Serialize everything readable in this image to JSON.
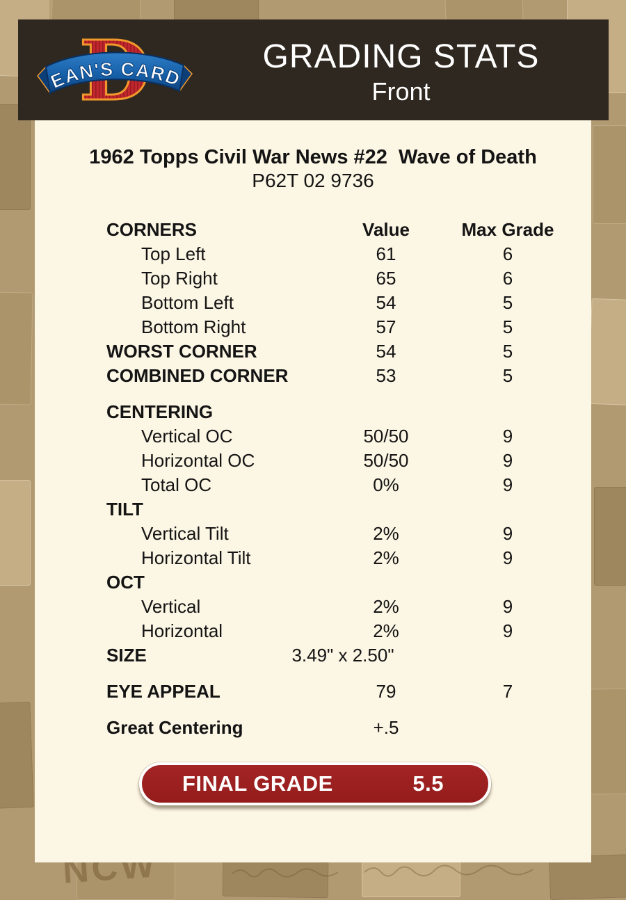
{
  "header": {
    "logo_monogram": "D",
    "logo_text": "DEAN'S CARDS",
    "title": "GRADING STATS",
    "view": "Front"
  },
  "card": {
    "title": "1962 Topps Civil War News #22  Wave of Death",
    "id": "P62T 02 9736"
  },
  "table": {
    "rows": [
      {
        "label": "CORNERS",
        "value": "Value",
        "max": "Max Grade",
        "type": "header"
      },
      {
        "label": "Top Left",
        "value": "61",
        "max": "6",
        "type": "item"
      },
      {
        "label": "Top Right",
        "value": "65",
        "max": "6",
        "type": "item"
      },
      {
        "label": "Bottom Left",
        "value": "54",
        "max": "5",
        "type": "item"
      },
      {
        "label": "Bottom Right",
        "value": "57",
        "max": "5",
        "type": "item"
      },
      {
        "label": "WORST CORNER",
        "value": "54",
        "max": "5",
        "type": "section"
      },
      {
        "label": "COMBINED CORNER",
        "value": "53",
        "max": "5",
        "type": "section"
      },
      {
        "label": "CENTERING",
        "value": "",
        "max": "",
        "type": "section",
        "gap": true
      },
      {
        "label": "Vertical OC",
        "value": "50/50",
        "max": "9",
        "type": "item"
      },
      {
        "label": "Horizontal OC",
        "value": "50/50",
        "max": "9",
        "type": "item"
      },
      {
        "label": "Total OC",
        "value": "0%",
        "max": "9",
        "type": "item"
      },
      {
        "label": "TILT",
        "value": "",
        "max": "",
        "type": "section"
      },
      {
        "label": "Vertical Tilt",
        "value": "2%",
        "max": "9",
        "type": "item"
      },
      {
        "label": "Horizontal Tilt",
        "value": "2%",
        "max": "9",
        "type": "item"
      },
      {
        "label": "OCT",
        "value": "",
        "max": "",
        "type": "section"
      },
      {
        "label": "Vertical",
        "value": "2%",
        "max": "9",
        "type": "item"
      },
      {
        "label": "Horizontal",
        "value": "2%",
        "max": "9",
        "type": "item"
      },
      {
        "label": "SIZE",
        "value": "3.49\" x 2.50\"",
        "max": "",
        "type": "section",
        "vshift": true
      },
      {
        "label": "EYE APPEAL",
        "value": "79",
        "max": "7",
        "type": "section",
        "gap": true
      },
      {
        "label": "Great Centering",
        "value": "+.5",
        "max": "",
        "type": "section",
        "gap": true
      }
    ]
  },
  "final_grade": {
    "label": "FINAL GRADE",
    "value": "5.5"
  },
  "colors": {
    "background_tan": "#b19a72",
    "header_bg": "#2f2820",
    "panel_bg": "#fcf6e4",
    "grade_red": "#9a1e1e",
    "logo_red": "#c2272e",
    "logo_blue": "#1660a8",
    "logo_orange": "#f2992c",
    "text": "#141414"
  }
}
